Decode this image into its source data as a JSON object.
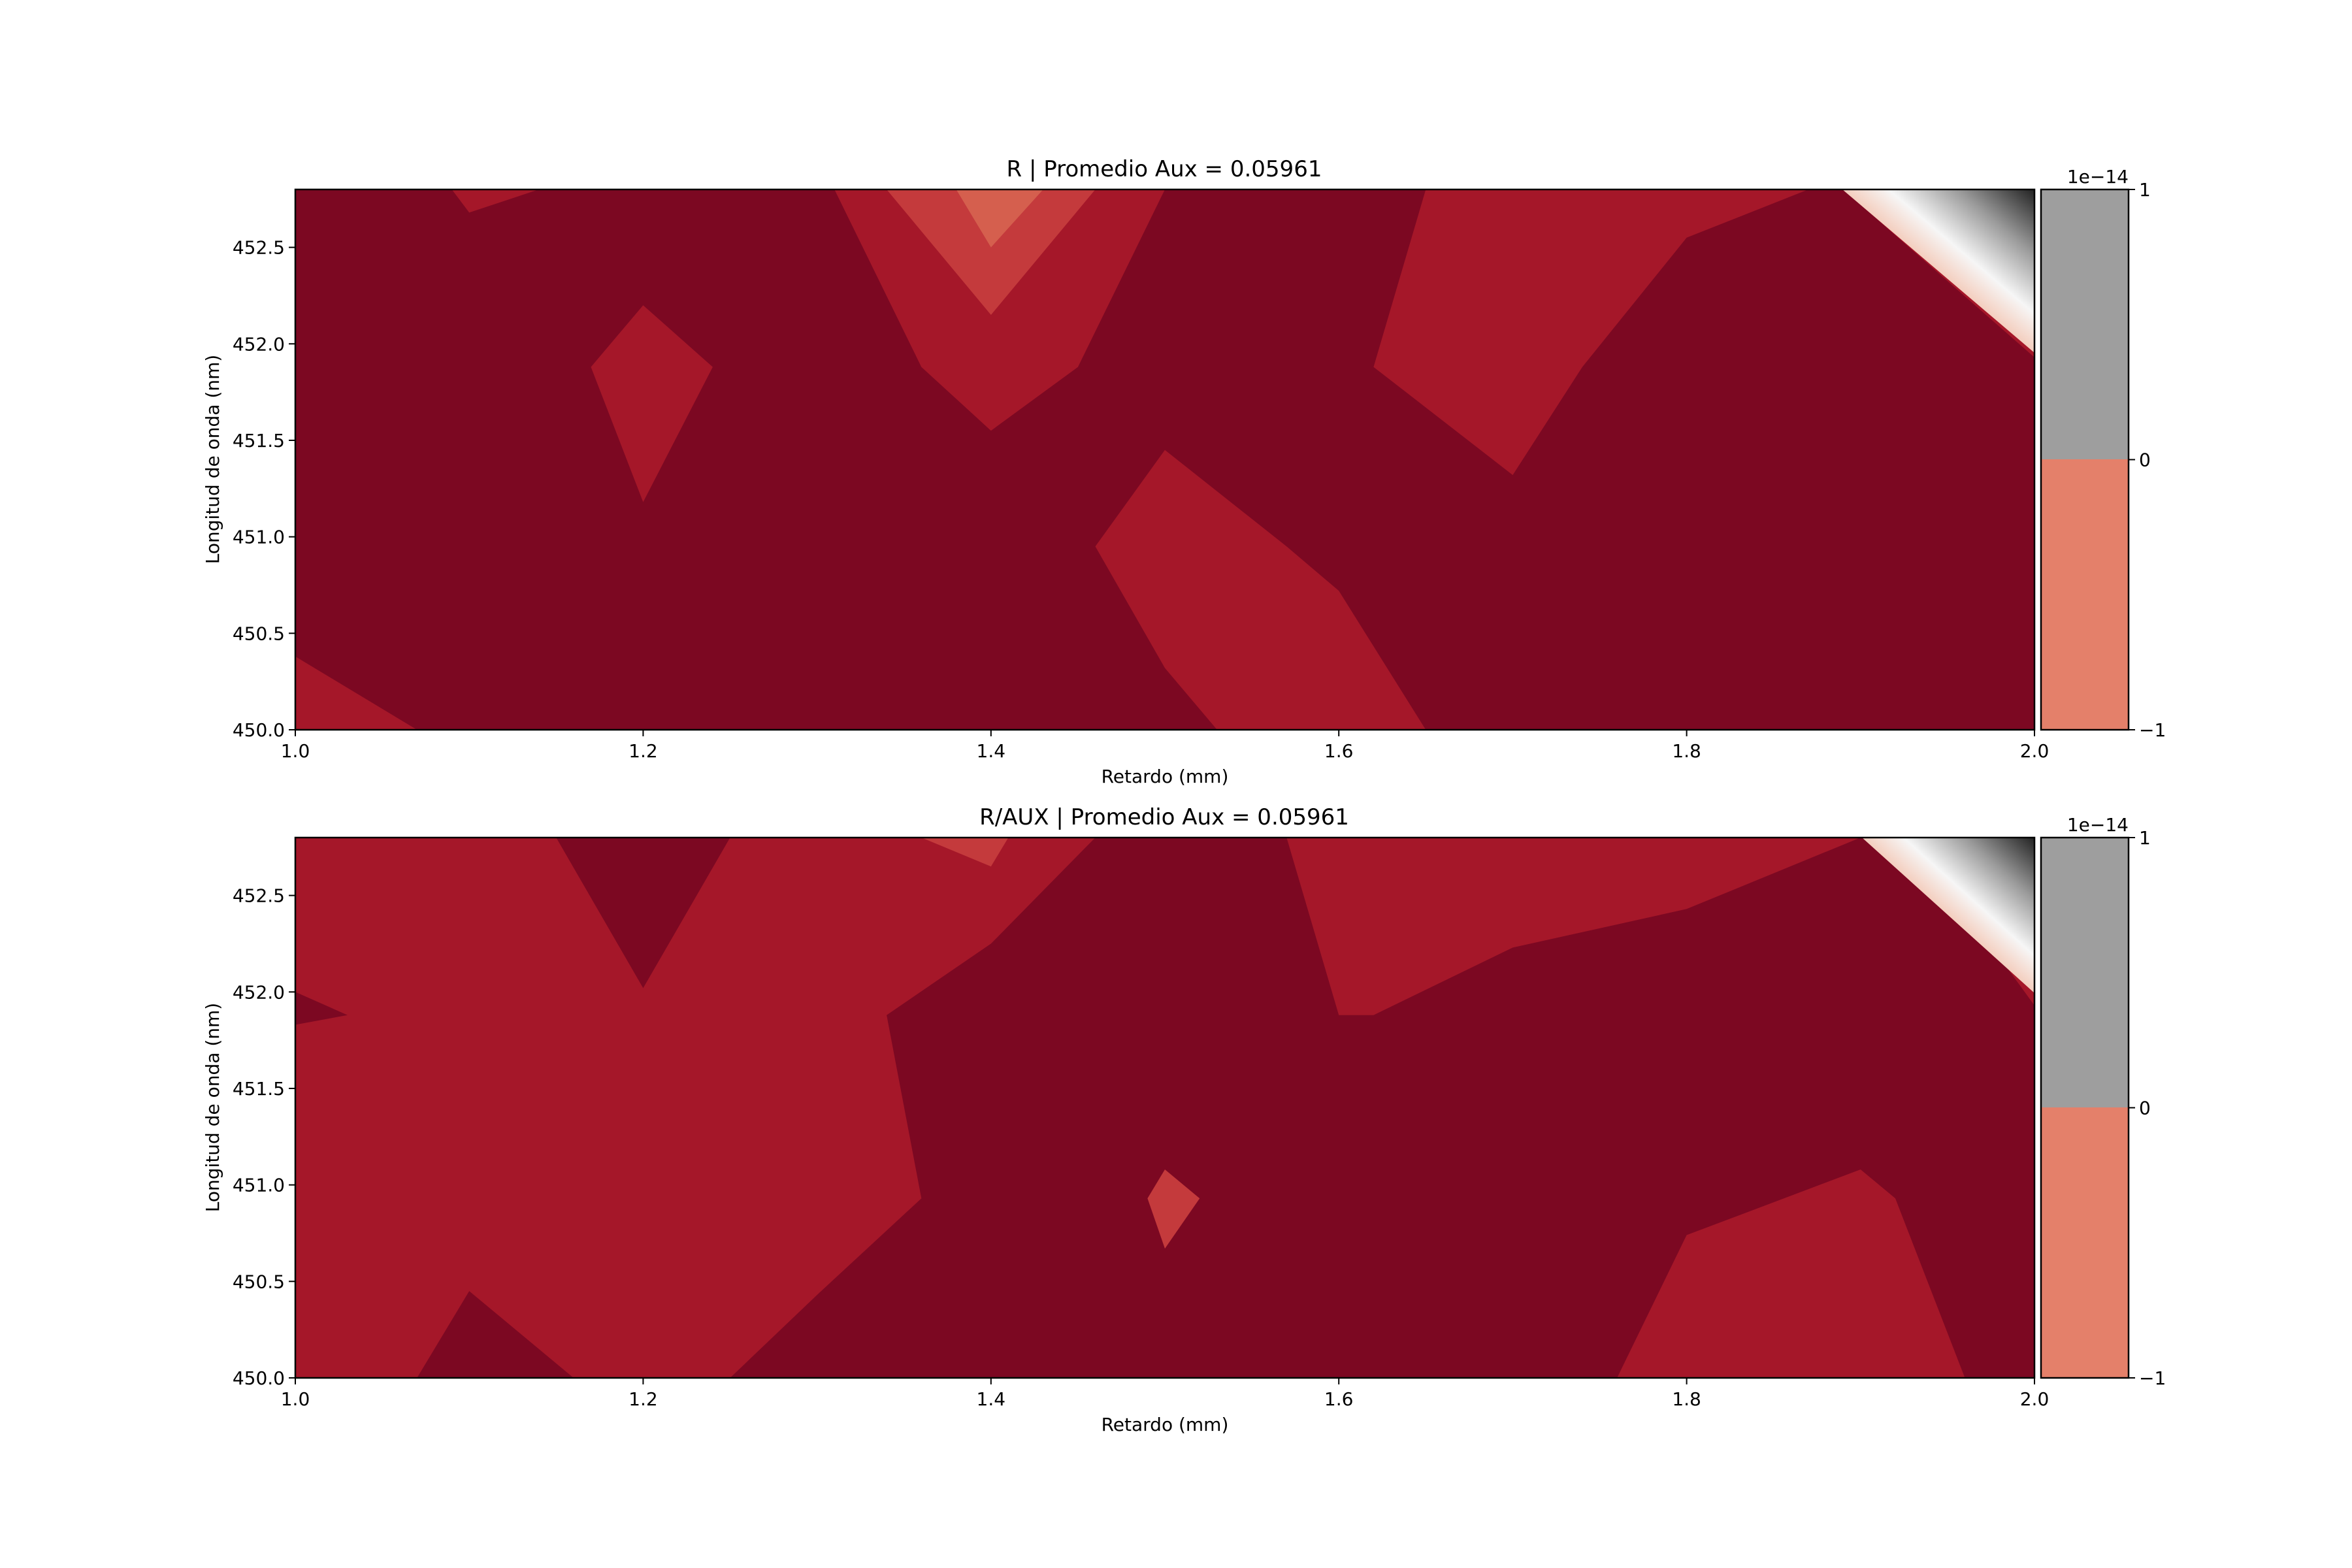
{
  "chart_data": [
    {
      "type": "contour",
      "title": "R | Promedio Aux = 0.05961",
      "xlabel": "Retardo (mm)",
      "ylabel": "Longitud de onda (nm)",
      "xlim": [
        1.0,
        2.0
      ],
      "ylim": [
        450.0,
        452.8
      ],
      "xticks": [
        "1.0",
        "1.2",
        "1.4",
        "1.6",
        "1.8",
        "2.0"
      ],
      "yticks": [
        "450.0",
        "450.5",
        "451.0",
        "451.5",
        "452.0",
        "452.5"
      ],
      "colorbar": {
        "ticks": [
          "−1",
          "0",
          "1"
        ],
        "offset_label": "1e−14",
        "levels": [
          {
            "from": -1,
            "to": 0,
            "color": "#e4806a"
          },
          {
            "from": 0,
            "to": 1,
            "color": "#9e9e9e"
          }
        ]
      },
      "regions": [
        {
          "level": "dark",
          "color": "#7c0822",
          "polygon": [
            [
              1.0,
              450.0
            ],
            [
              2.0,
              450.0
            ],
            [
              2.0,
              452.8
            ],
            [
              1.0,
              452.8
            ]
          ]
        },
        {
          "level": "mid",
          "color": "#a51729",
          "polygon": [
            [
              1.0,
              450.0
            ],
            [
              1.07,
              450.0
            ],
            [
              1.0,
              450.38
            ]
          ]
        },
        {
          "level": "mid",
          "color": "#a51729",
          "polygon": [
            [
              1.09,
              452.8
            ],
            [
              1.14,
              452.8
            ],
            [
              1.1,
              452.68
            ]
          ]
        },
        {
          "level": "mid",
          "color": "#a51729",
          "polygon": [
            [
              1.2,
              452.2
            ],
            [
              1.24,
              451.88
            ],
            [
              1.2,
              451.18
            ],
            [
              1.17,
              451.88
            ]
          ]
        },
        {
          "level": "mid",
          "color": "#a51729",
          "polygon": [
            [
              1.31,
              452.8
            ],
            [
              1.5,
              452.8
            ],
            [
              1.45,
              451.88
            ],
            [
              1.4,
              451.55
            ],
            [
              1.36,
              451.88
            ]
          ]
        },
        {
          "level": "mid",
          "color": "#a51729",
          "polygon": [
            [
              1.5,
              451.45
            ],
            [
              1.57,
              450.95
            ],
            [
              1.6,
              450.72
            ],
            [
              1.65,
              450.0
            ],
            [
              1.53,
              450.0
            ],
            [
              1.5,
              450.32
            ],
            [
              1.46,
              450.95
            ]
          ]
        },
        {
          "level": "mid",
          "color": "#a51729",
          "polygon": [
            [
              1.65,
              452.8
            ],
            [
              1.87,
              452.8
            ],
            [
              1.8,
              452.55
            ],
            [
              1.74,
              451.88
            ],
            [
              1.7,
              451.32
            ],
            [
              1.62,
              451.88
            ]
          ]
        },
        {
          "level": "mid",
          "color": "#a51729",
          "polygon": [
            [
              1.89,
              452.8
            ],
            [
              2.0,
              452.8
            ],
            [
              2.0,
              451.93
            ]
          ]
        },
        {
          "level": "light",
          "color": "#c43a3c",
          "polygon": [
            [
              1.34,
              452.8
            ],
            [
              1.46,
              452.8
            ],
            [
              1.4,
              452.15
            ]
          ]
        },
        {
          "level": "lighter",
          "color": "#d55f4e",
          "polygon": [
            [
              1.38,
              452.8
            ],
            [
              1.43,
              452.8
            ],
            [
              1.4,
              452.5
            ]
          ]
        }
      ]
    },
    {
      "type": "contour",
      "title": "R/AUX | Promedio Aux = 0.05961",
      "xlabel": "Retardo (mm)",
      "ylabel": "Longitud de onda (nm)",
      "xlim": [
        1.0,
        2.0
      ],
      "ylim": [
        450.0,
        452.8
      ],
      "xticks": [
        "1.0",
        "1.2",
        "1.4",
        "1.6",
        "1.8",
        "2.0"
      ],
      "yticks": [
        "450.0",
        "450.5",
        "451.0",
        "451.5",
        "452.0",
        "452.5"
      ],
      "colorbar": {
        "ticks": [
          "−1",
          "0",
          "1"
        ],
        "offset_label": "1e−14",
        "levels": [
          {
            "from": -1,
            "to": 0,
            "color": "#e4806a"
          },
          {
            "from": 0,
            "to": 1,
            "color": "#9e9e9e"
          }
        ]
      },
      "regions": [
        {
          "level": "mid",
          "color": "#a51729",
          "polygon": [
            [
              1.0,
              450.0
            ],
            [
              2.0,
              450.0
            ],
            [
              2.0,
              452.8
            ],
            [
              1.0,
              452.8
            ]
          ]
        },
        {
          "level": "dark",
          "color": "#7c0822",
          "polygon": [
            [
              1.0,
              452.0
            ],
            [
              1.03,
              451.88
            ],
            [
              1.0,
              451.83
            ]
          ]
        },
        {
          "level": "dark",
          "color": "#7c0822",
          "polygon": [
            [
              1.07,
              450.0
            ],
            [
              1.1,
              450.45
            ],
            [
              1.16,
              450.0
            ]
          ]
        },
        {
          "level": "dark",
          "color": "#7c0822",
          "polygon": [
            [
              1.15,
              452.8
            ],
            [
              1.25,
              452.8
            ],
            [
              1.2,
              452.02
            ]
          ]
        },
        {
          "level": "dark",
          "color": "#7c0822",
          "polygon": [
            [
              1.25,
              450.0
            ],
            [
              1.3,
              450.43
            ],
            [
              1.36,
              450.93
            ],
            [
              1.34,
              451.88
            ],
            [
              1.4,
              452.25
            ],
            [
              1.46,
              452.8
            ],
            [
              1.57,
              452.8
            ],
            [
              1.6,
              451.88
            ],
            [
              1.7,
              451.25
            ],
            [
              1.76,
              450.93
            ],
            [
              1.7,
              450.67
            ],
            [
              1.64,
              450.0
            ],
            [
              1.4,
              450.0
            ],
            [
              1.4,
              450.35
            ],
            [
              1.42,
              450.93
            ],
            [
              1.47,
              451.88
            ],
            [
              1.5,
              452.02
            ],
            [
              1.6,
              451.88
            ],
            [
              1.62,
              451.88
            ],
            [
              1.7,
              452.23
            ],
            [
              1.8,
              452.43
            ],
            [
              1.9,
              452.8
            ],
            [
              1.93,
              452.8
            ],
            [
              2.0,
              451.93
            ],
            [
              2.0,
              450.0
            ],
            [
              1.96,
              450.0
            ],
            [
              1.92,
              450.93
            ],
            [
              1.9,
              451.08
            ],
            [
              1.8,
              450.74
            ],
            [
              1.76,
              450.0
            ]
          ]
        },
        {
          "level": "light",
          "color": "#c43a3c",
          "polygon": [
            [
              1.5,
              451.08
            ],
            [
              1.52,
              450.93
            ],
            [
              1.5,
              450.67
            ],
            [
              1.49,
              450.93
            ]
          ]
        },
        {
          "level": "light",
          "color": "#c43a3c",
          "polygon": [
            [
              1.36,
              452.8
            ],
            [
              1.41,
              452.8
            ],
            [
              1.4,
              452.65
            ]
          ]
        }
      ]
    }
  ]
}
